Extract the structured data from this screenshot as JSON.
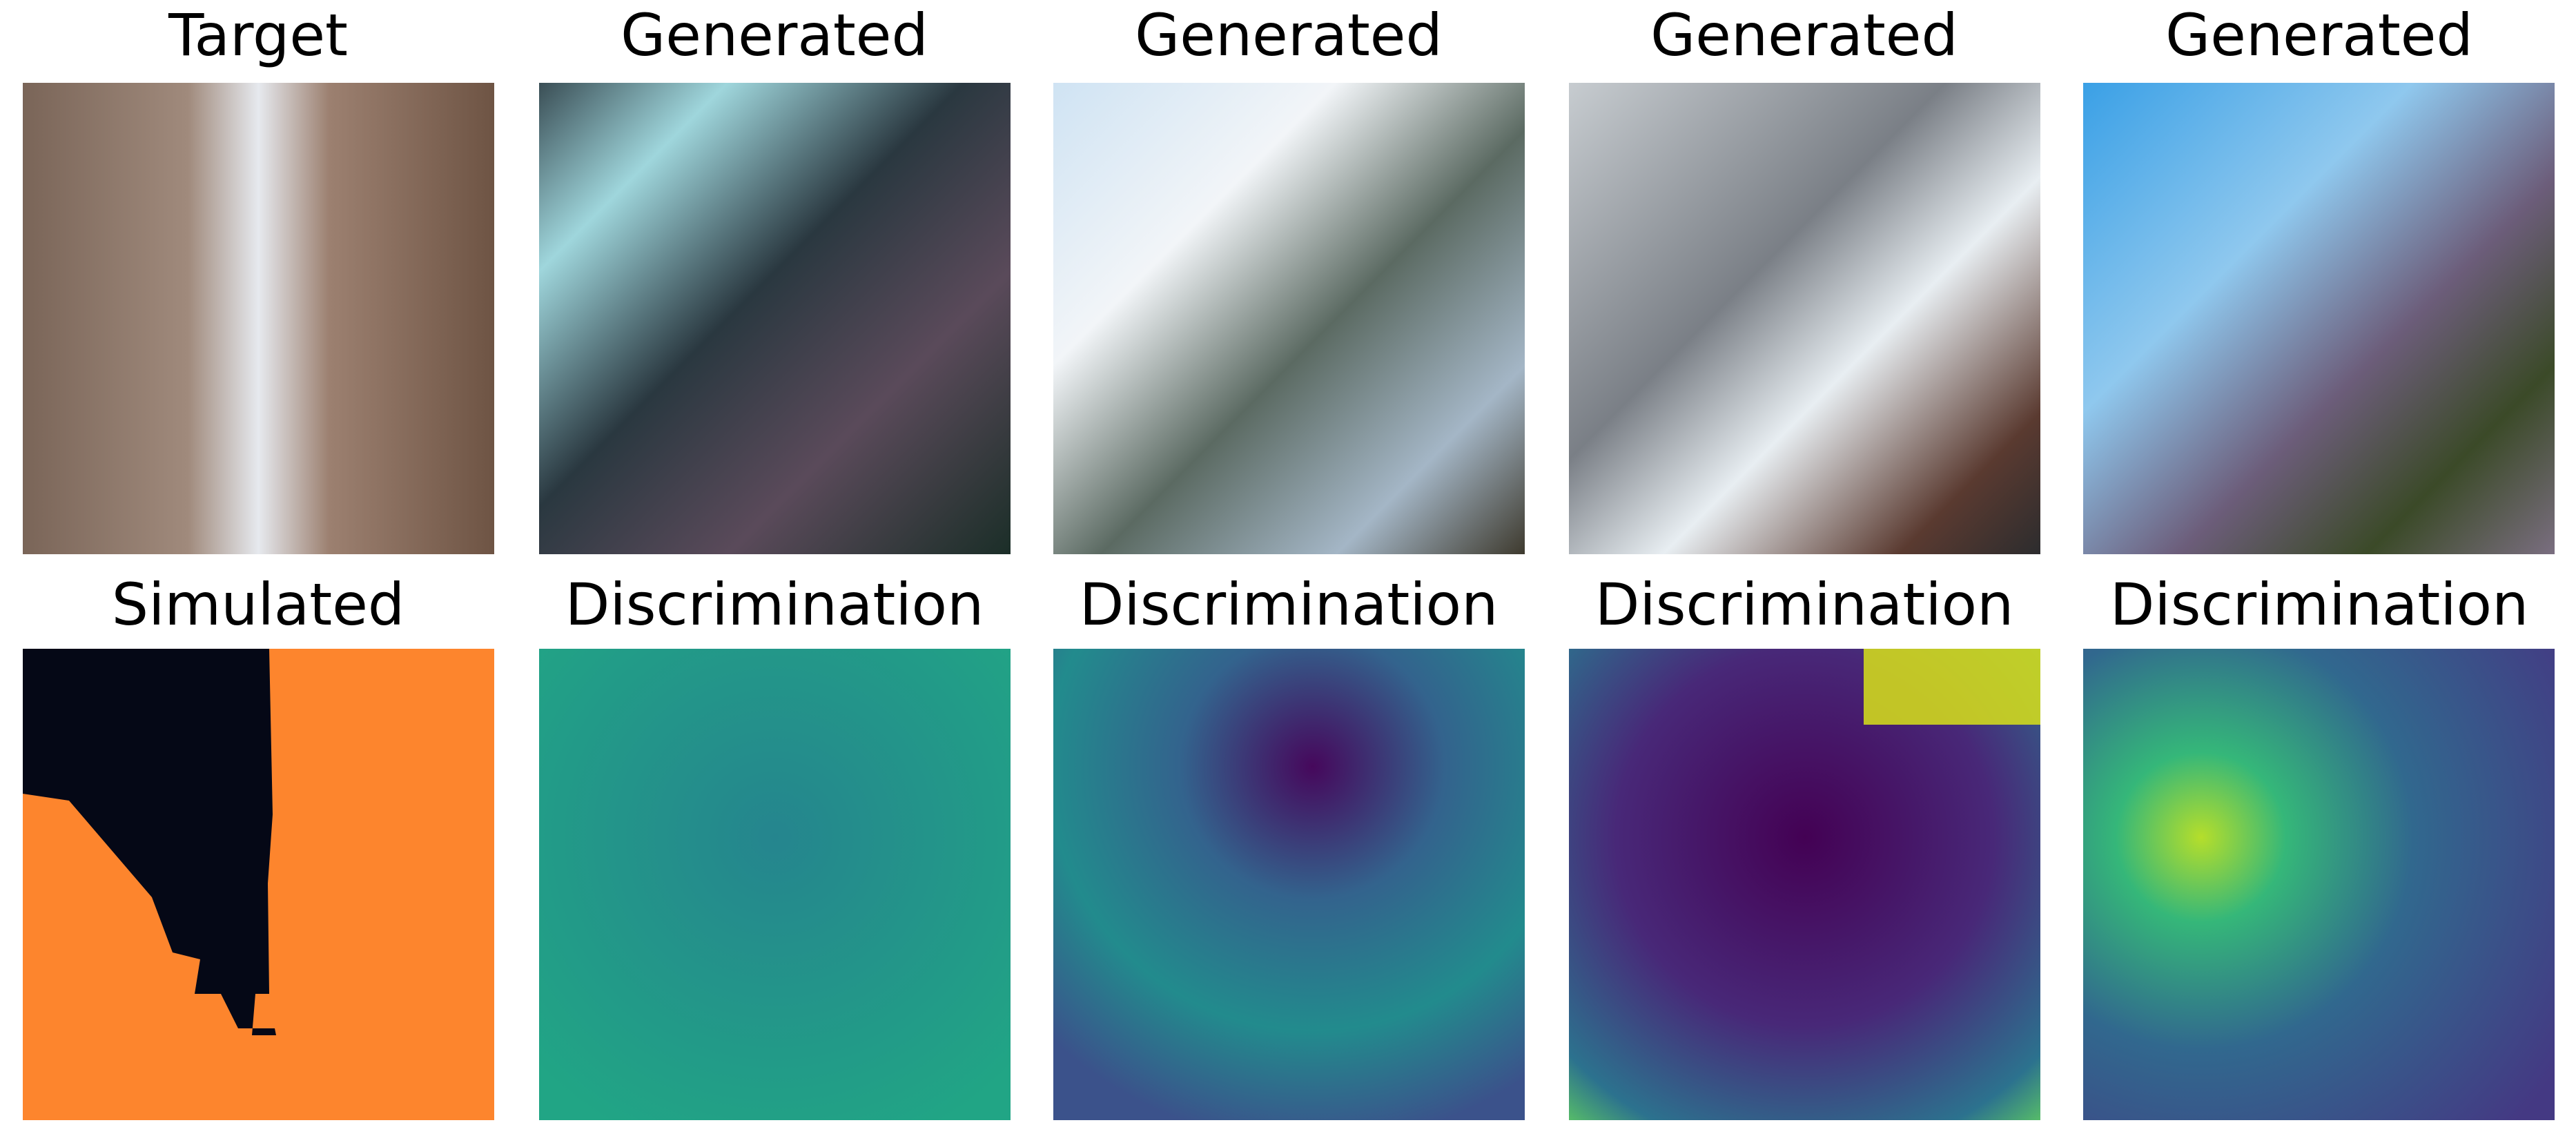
{
  "panels": {
    "top": [
      "Target",
      "Generated",
      "Generated",
      "Generated",
      "Generated"
    ],
    "bottom": [
      "Simulated",
      "Discrimination",
      "Discrimination",
      "Discrimination",
      "Discrimination"
    ]
  }
}
